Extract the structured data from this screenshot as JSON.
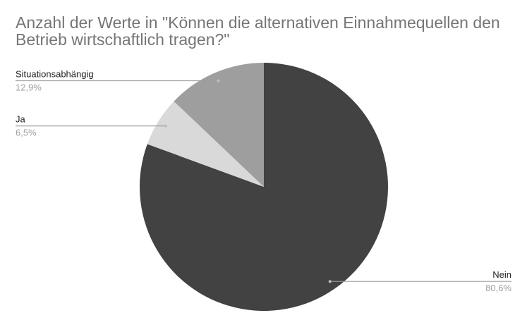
{
  "chart_data": {
    "type": "pie",
    "title": "Anzahl der Werte in \"Können die alternativen Einnahmequellen den Betrieb wirtschaftlich tragen?\"",
    "categories": [
      "Nein",
      "Ja",
      "Situationsabhängig"
    ],
    "values": [
      80.6,
      6.5,
      12.9
    ],
    "value_labels": [
      "80,6%",
      "6,5%",
      "12,9%"
    ],
    "colors": [
      "#424242",
      "#d9d9d9",
      "#9e9e9e"
    ]
  }
}
